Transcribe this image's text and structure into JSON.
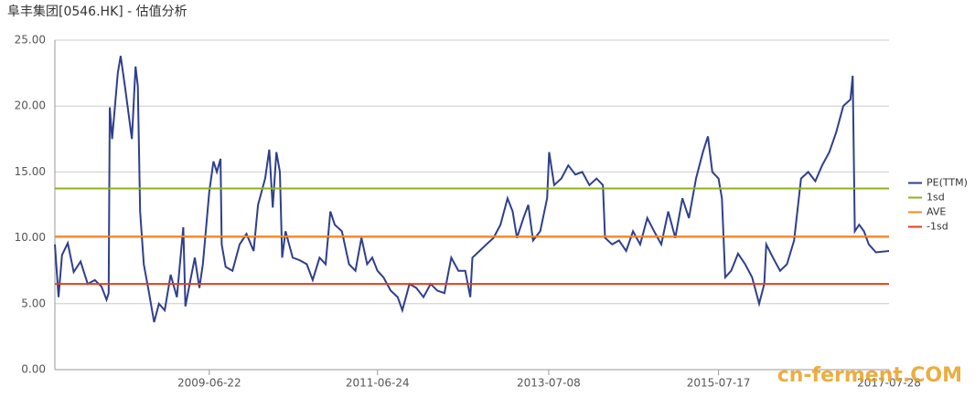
{
  "chart_data": {
    "type": "line",
    "title": "阜丰集团[0546.HK] - 估值分析",
    "watermark": "cn-ferment.COM",
    "xlim": [
      "2007-08-20",
      "2017-07-28"
    ],
    "xticks": [
      "2009-06-22",
      "2011-06-24",
      "2013-07-08",
      "2015-07-17",
      "2017-07-28"
    ],
    "ylim": [
      0,
      25
    ],
    "yticks": [
      {
        "value": 0,
        "label": "0.00"
      },
      {
        "value": 5,
        "label": "5.00"
      },
      {
        "value": 10,
        "label": "10.00"
      },
      {
        "value": 15,
        "label": "15.00"
      },
      {
        "value": 20,
        "label": "20.00"
      },
      {
        "value": 25,
        "label": "25.00"
      }
    ],
    "grid": true,
    "legend": "right",
    "series": [
      {
        "name": "PE(TTM)",
        "color": "#2f3f8c",
        "x": [
          "2007-08-20",
          "2007-09-05",
          "2007-09-20",
          "2007-10-15",
          "2007-11-10",
          "2007-12-10",
          "2008-01-10",
          "2008-02-10",
          "2008-03-10",
          "2008-04-01",
          "2008-04-10",
          "2008-04-15",
          "2008-04-25",
          "2008-05-20",
          "2008-06-01",
          "2008-06-20",
          "2008-07-20",
          "2008-08-05",
          "2008-08-15",
          "2008-08-25",
          "2008-09-10",
          "2008-10-01",
          "2008-10-25",
          "2008-11-15",
          "2008-12-10",
          "2009-01-05",
          "2009-02-01",
          "2009-03-01",
          "2009-03-10",
          "2009-04-01",
          "2009-04-20",
          "2009-05-10",
          "2009-05-25",
          "2009-06-22",
          "2009-07-10",
          "2009-07-25",
          "2009-08-10",
          "2009-08-15",
          "2009-09-01",
          "2009-10-01",
          "2009-11-01",
          "2009-12-01",
          "2010-01-01",
          "2010-01-20",
          "2010-02-20",
          "2010-03-10",
          "2010-03-25",
          "2010-04-10",
          "2010-04-25",
          "2010-05-05",
          "2010-05-20",
          "2010-06-20",
          "2010-07-20",
          "2010-08-20",
          "2010-09-15",
          "2010-10-15",
          "2010-11-10",
          "2010-12-01",
          "2010-12-20",
          "2011-01-20",
          "2011-02-20",
          "2011-03-20",
          "2011-04-15",
          "2011-05-10",
          "2011-06-01",
          "2011-06-24",
          "2011-07-20",
          "2011-08-20",
          "2011-09-20",
          "2011-10-10",
          "2011-11-10",
          "2011-12-10",
          "2012-01-10",
          "2012-02-10",
          "2012-03-10",
          "2012-04-10",
          "2012-05-10",
          "2012-06-10",
          "2012-07-10",
          "2012-08-01",
          "2012-08-10",
          "2012-09-10",
          "2012-10-10",
          "2012-11-10",
          "2012-12-10",
          "2013-01-10",
          "2013-02-01",
          "2013-02-20",
          "2013-03-20",
          "2013-04-10",
          "2013-05-01",
          "2013-06-01",
          "2013-07-01",
          "2013-07-10",
          "2013-08-01",
          "2013-09-01",
          "2013-10-01",
          "2013-11-01",
          "2013-12-01",
          "2014-01-01",
          "2014-02-01",
          "2014-03-01",
          "2014-03-10",
          "2014-04-10",
          "2014-05-10",
          "2014-06-10",
          "2014-07-10",
          "2014-08-10",
          "2014-09-10",
          "2014-10-10",
          "2014-11-10",
          "2014-12-10",
          "2015-01-10",
          "2015-02-10",
          "2015-03-10",
          "2015-04-10",
          "2015-05-10",
          "2015-06-01",
          "2015-06-20",
          "2015-07-17",
          "2015-08-01",
          "2015-08-15",
          "2015-09-10",
          "2015-10-10",
          "2015-11-10",
          "2015-12-10",
          "2016-01-10",
          "2016-02-01",
          "2016-02-10",
          "2016-03-10",
          "2016-04-10",
          "2016-05-10",
          "2016-06-10",
          "2016-07-10",
          "2016-08-10",
          "2016-09-10",
          "2016-10-10",
          "2016-11-10",
          "2016-12-10",
          "2017-01-10",
          "2017-02-10",
          "2017-02-20",
          "2017-03-01",
          "2017-03-20",
          "2017-04-10",
          "2017-05-01",
          "2017-06-01",
          "2017-07-28"
        ],
        "values": [
          9.5,
          5.5,
          8.7,
          9.6,
          7.4,
          8.2,
          6.5,
          6.8,
          6.3,
          5.3,
          5.8,
          19.9,
          17.5,
          22.5,
          23.8,
          21.5,
          17.5,
          23.0,
          21.5,
          12.0,
          8.0,
          6.0,
          3.6,
          5.0,
          4.5,
          7.2,
          5.5,
          10.8,
          4.8,
          6.8,
          8.5,
          6.2,
          8.0,
          13.5,
          15.8,
          15.0,
          16.0,
          9.5,
          7.8,
          7.5,
          9.5,
          10.3,
          9.0,
          12.5,
          14.5,
          16.7,
          12.3,
          16.5,
          15.0,
          8.5,
          10.5,
          8.5,
          8.3,
          8.0,
          6.8,
          8.5,
          8.0,
          12.0,
          11.0,
          10.5,
          8.0,
          7.5,
          10.0,
          8.0,
          8.5,
          7.5,
          7.0,
          6.0,
          5.5,
          4.5,
          6.5,
          6.2,
          5.5,
          6.5,
          6.0,
          5.8,
          8.5,
          7.5,
          7.5,
          5.5,
          8.5,
          9.0,
          9.5,
          10.0,
          11.0,
          13.0,
          12.0,
          10.0,
          11.5,
          12.5,
          9.8,
          10.5,
          13.0,
          16.5,
          14.0,
          14.5,
          15.5,
          14.8,
          15.0,
          14.0,
          14.5,
          14.0,
          10.0,
          9.5,
          9.8,
          9.0,
          10.5,
          9.5,
          11.5,
          10.5,
          9.5,
          12.0,
          10.0,
          13.0,
          11.5,
          14.5,
          16.5,
          17.7,
          15.0,
          14.5,
          13.0,
          7.0,
          7.5,
          8.8,
          8.0,
          7.0,
          5.0,
          6.5,
          9.5,
          8.5,
          7.5,
          8.0,
          9.8,
          14.5,
          15.0,
          14.3,
          15.5,
          16.5,
          18.0,
          20.0,
          20.5,
          22.3,
          10.5,
          11.0,
          10.5,
          9.5,
          8.9,
          9.0
        ]
      }
    ],
    "reference_lines": [
      {
        "name": "1sd",
        "color": "#8db31d",
        "value": 13.75
      },
      {
        "name": "AVE",
        "color": "#f08a24",
        "value": 10.1
      },
      {
        "name": "-1sd",
        "color": "#e0401c",
        "value": 6.5
      }
    ]
  }
}
